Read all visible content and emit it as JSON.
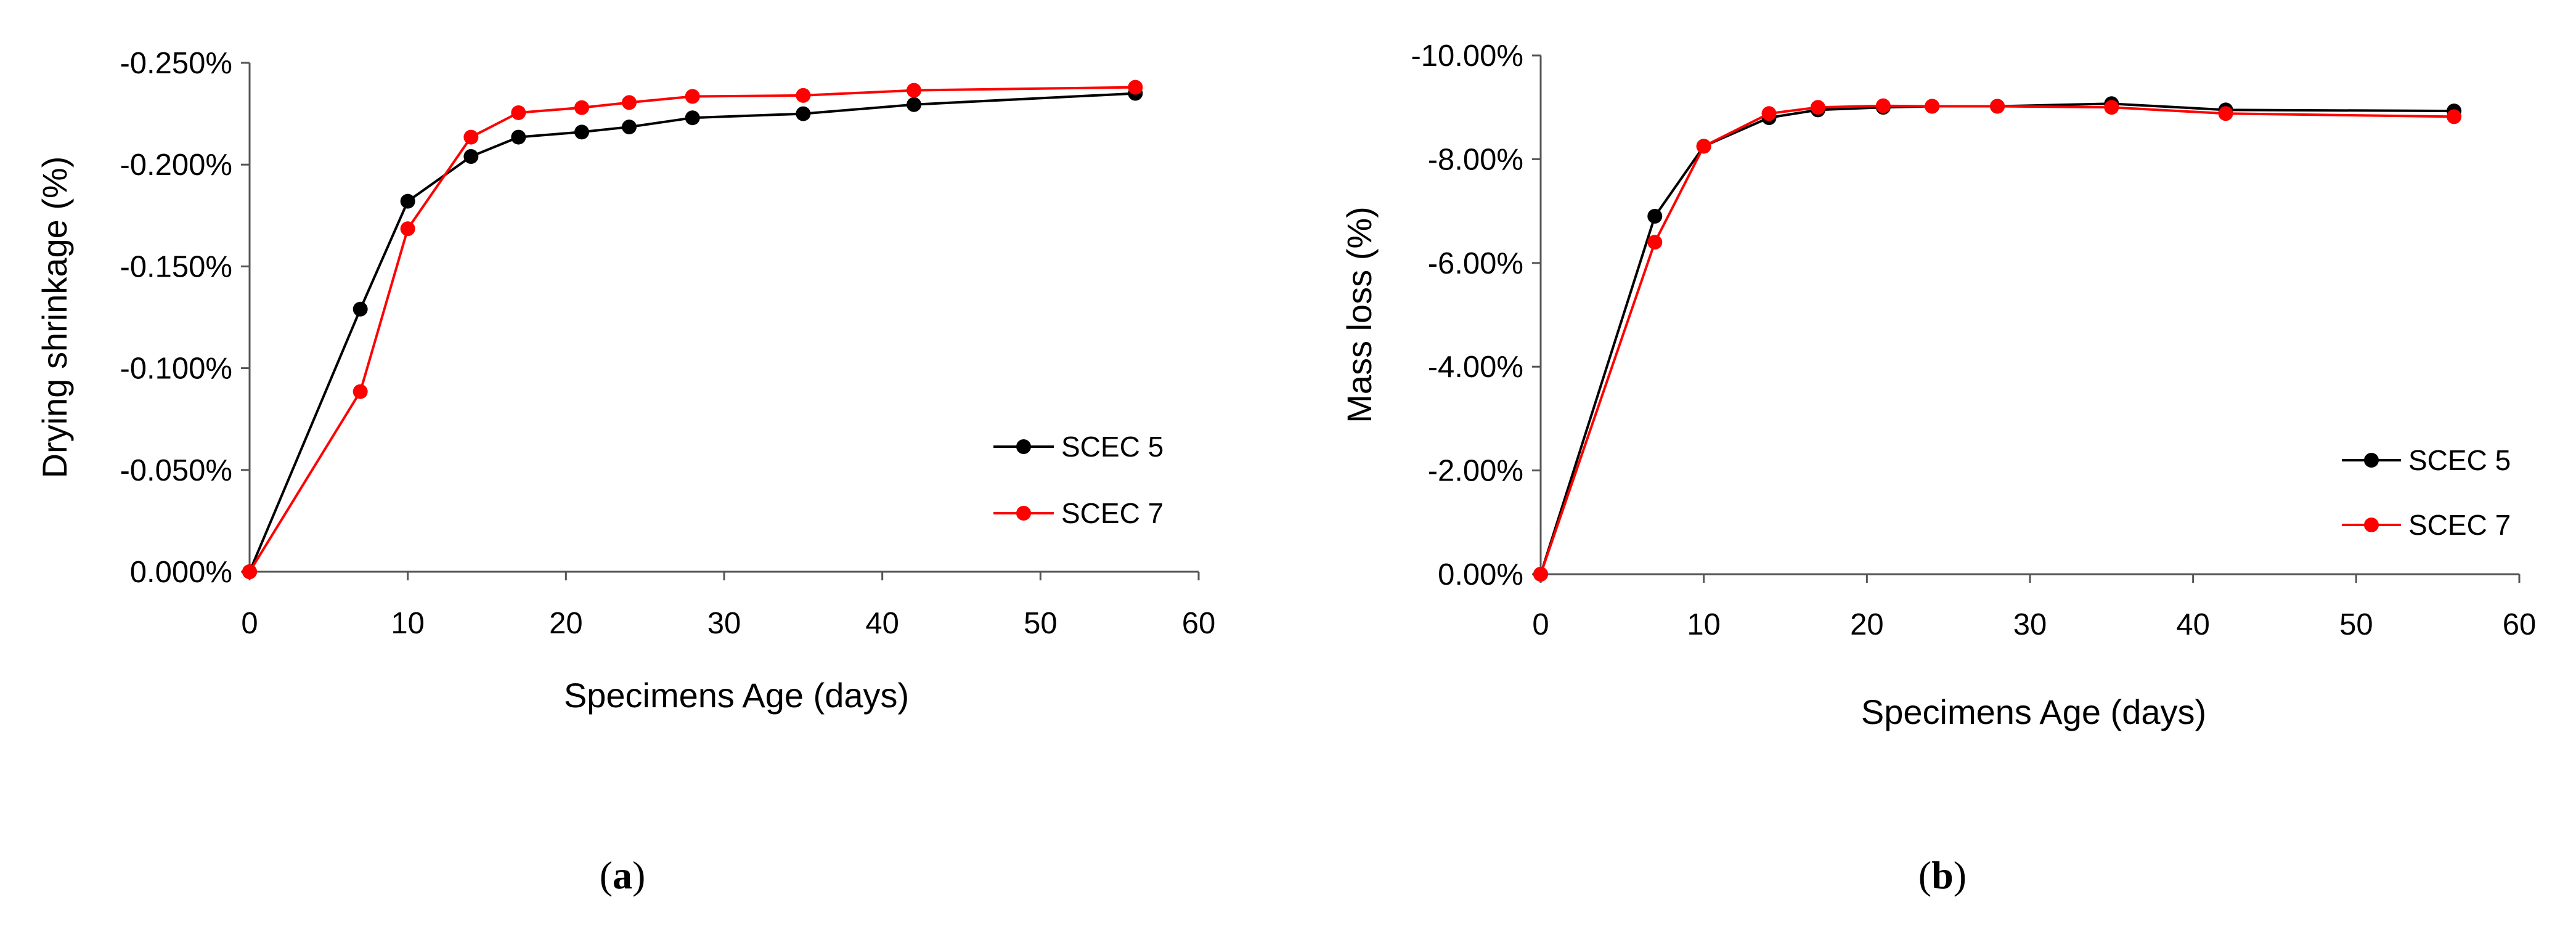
{
  "chart_data": [
    {
      "type": "line",
      "panel_label": "a",
      "xlabel": "Specimens Age (days)",
      "ylabel": "Drying shrinkage (%)",
      "xlim": [
        0,
        60
      ],
      "ylim": [
        0,
        -0.25
      ],
      "y_reversed": true,
      "x_ticks": [
        "0",
        "10",
        "20",
        "30",
        "40",
        "50",
        "60"
      ],
      "y_ticks": [
        "0.000%",
        "-0.050%",
        "-0.100%",
        "-0.150%",
        "-0.200%",
        "-0.250%"
      ],
      "legend_position": "right",
      "series": [
        {
          "name": "SCEC 5",
          "color": "#000000",
          "x": [
            0,
            7,
            10,
            14,
            17,
            21,
            24,
            28,
            35,
            42,
            56
          ],
          "y": [
            0,
            -0.129,
            -0.182,
            -0.204,
            -0.2135,
            -0.216,
            -0.2185,
            -0.223,
            -0.225,
            -0.2295,
            -0.235
          ]
        },
        {
          "name": "SCEC 7",
          "color": "#ff0000",
          "x": [
            0,
            7,
            10,
            14,
            17,
            21,
            24,
            28,
            35,
            42,
            56
          ],
          "y": [
            0,
            -0.0885,
            -0.1685,
            -0.2135,
            -0.2255,
            -0.228,
            -0.2305,
            -0.2335,
            -0.234,
            -0.2365,
            -0.238
          ]
        }
      ]
    },
    {
      "type": "line",
      "panel_label": "b",
      "xlabel": "Specimens Age (days)",
      "ylabel": "Mass loss (%)",
      "xlim": [
        0,
        60
      ],
      "ylim": [
        0,
        -10
      ],
      "y_reversed": true,
      "x_ticks": [
        "0",
        "10",
        "20",
        "30",
        "40",
        "50",
        "60"
      ],
      "y_ticks": [
        "0.00%",
        "-2.00%",
        "-4.00%",
        "-6.00%",
        "-8.00%",
        "-10.00%"
      ],
      "legend_position": "right",
      "series": [
        {
          "name": "SCEC 5",
          "color": "#000000",
          "x": [
            0,
            7,
            10,
            14,
            17,
            21,
            24,
            28,
            35,
            42,
            56
          ],
          "y": [
            0,
            -6.9,
            -8.25,
            -8.8,
            -8.95,
            -9.0,
            -9.02,
            -9.02,
            -9.07,
            -8.95,
            -8.93
          ]
        },
        {
          "name": "SCEC 7",
          "color": "#ff0000",
          "x": [
            0,
            7,
            10,
            14,
            17,
            21,
            24,
            28,
            35,
            42,
            56
          ],
          "y": [
            0,
            -6.4,
            -8.25,
            -8.88,
            -9.0,
            -9.03,
            -9.02,
            -9.02,
            -9.0,
            -8.88,
            -8.82
          ]
        }
      ]
    }
  ]
}
